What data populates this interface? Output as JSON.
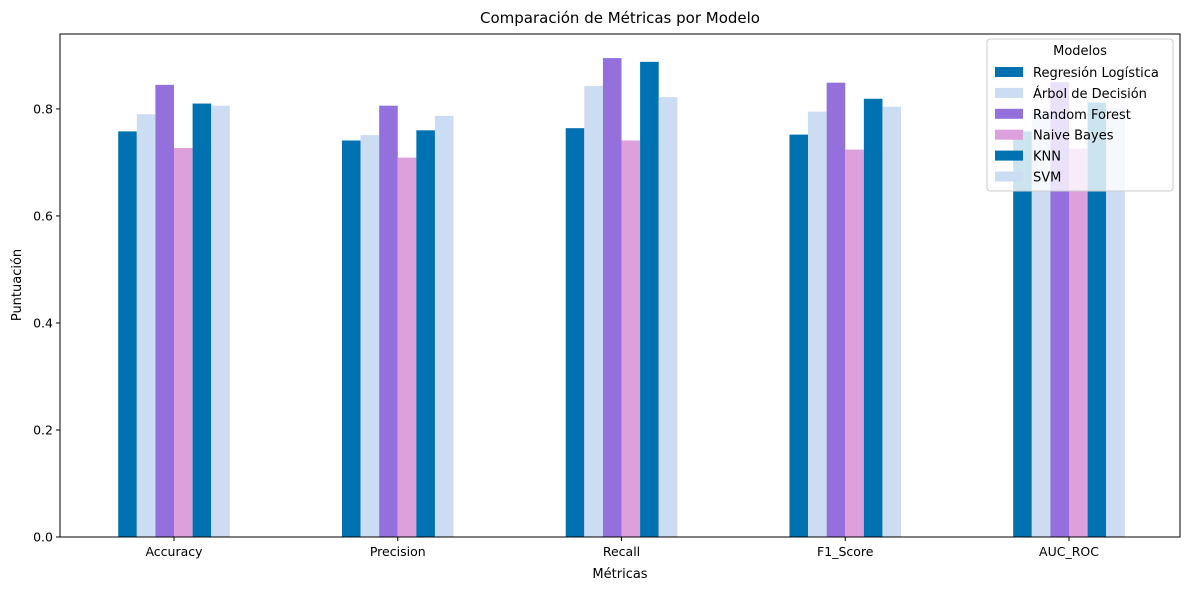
{
  "chart_data": {
    "type": "bar",
    "title": "Comparación de Métricas por Modelo",
    "xlabel": "Métricas",
    "ylabel": "Puntuación",
    "categories": [
      "Accuracy",
      "Precision",
      "Recall",
      "F1_Score",
      "AUC_ROC"
    ],
    "ylim": [
      0,
      0.94
    ],
    "yticks": [
      0.0,
      0.2,
      0.4,
      0.6,
      0.8
    ],
    "ytick_labels": [
      "0.0",
      "0.2",
      "0.4",
      "0.6",
      "0.8"
    ],
    "grid": false,
    "legend": {
      "title": "Modelos",
      "position": "top-right"
    },
    "series": [
      {
        "name": "Regresión Logística",
        "color": "#0072b2",
        "values": [
          0.758,
          0.741,
          0.764,
          0.752,
          0.758
        ]
      },
      {
        "name": "Árbol de Decisión",
        "color": "#ccdcf2",
        "values": [
          0.79,
          0.751,
          0.843,
          0.795,
          0.794
        ]
      },
      {
        "name": "Random Forest",
        "color": "#9370db",
        "values": [
          0.845,
          0.806,
          0.895,
          0.849,
          0.85
        ]
      },
      {
        "name": "Naive Bayes",
        "color": "#dda0dd",
        "values": [
          0.727,
          0.709,
          0.741,
          0.724,
          0.726
        ]
      },
      {
        "name": "KNN",
        "color": "#0072b2",
        "values": [
          0.81,
          0.76,
          0.888,
          0.819,
          0.812
        ]
      },
      {
        "name": "SVM",
        "color": "#ccdcf2",
        "values": [
          0.806,
          0.787,
          0.822,
          0.804,
          0.803
        ]
      }
    ]
  }
}
